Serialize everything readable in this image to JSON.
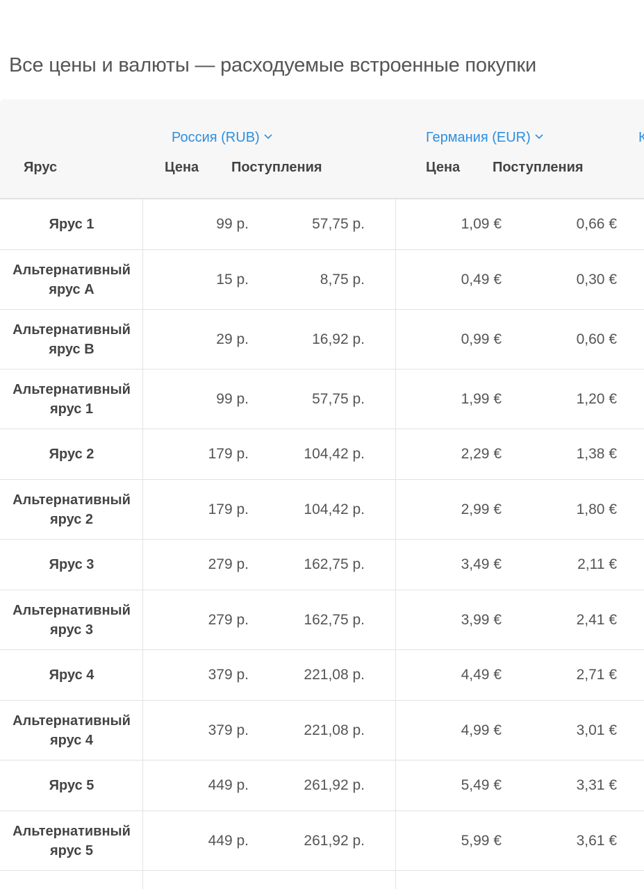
{
  "title": "Все цены и валюты — расходуемые встроенные покупки",
  "header": {
    "tier_label": "Ярус",
    "countries": [
      {
        "label": "Россия (RUB)"
      },
      {
        "label": "Германия (EUR)"
      },
      {
        "label": "К"
      }
    ],
    "price_label": "Цена",
    "proceeds_label": "Поступления"
  },
  "rows": [
    {
      "tier": "Ярус 1",
      "rub_price": "99 р.",
      "rub_proceeds": "57,75 р.",
      "eur_price": "1,09 €",
      "eur_proceeds": "0,66 €"
    },
    {
      "tier": "Альтернативный ярус A",
      "rub_price": "15 р.",
      "rub_proceeds": "8,75 р.",
      "eur_price": "0,49 €",
      "eur_proceeds": "0,30 €"
    },
    {
      "tier": "Альтернативный ярус B",
      "rub_price": "29 р.",
      "rub_proceeds": "16,92 р.",
      "eur_price": "0,99 €",
      "eur_proceeds": "0,60 €"
    },
    {
      "tier": "Альтернативный ярус 1",
      "rub_price": "99 р.",
      "rub_proceeds": "57,75 р.",
      "eur_price": "1,99 €",
      "eur_proceeds": "1,20 €"
    },
    {
      "tier": "Ярус 2",
      "rub_price": "179 р.",
      "rub_proceeds": "104,42 р.",
      "eur_price": "2,29 €",
      "eur_proceeds": "1,38 €"
    },
    {
      "tier": "Альтернативный ярус 2",
      "rub_price": "179 р.",
      "rub_proceeds": "104,42 р.",
      "eur_price": "2,99 €",
      "eur_proceeds": "1,80 €"
    },
    {
      "tier": "Ярус 3",
      "rub_price": "279 р.",
      "rub_proceeds": "162,75 р.",
      "eur_price": "3,49 €",
      "eur_proceeds": "2,11 €"
    },
    {
      "tier": "Альтернативный ярус 3",
      "rub_price": "279 р.",
      "rub_proceeds": "162,75 р.",
      "eur_price": "3,99 €",
      "eur_proceeds": "2,41 €"
    },
    {
      "tier": "Ярус 4",
      "rub_price": "379 р.",
      "rub_proceeds": "221,08 р.",
      "eur_price": "4,49 €",
      "eur_proceeds": "2,71 €"
    },
    {
      "tier": "Альтернативный ярус 4",
      "rub_price": "379 р.",
      "rub_proceeds": "221,08 р.",
      "eur_price": "4,99 €",
      "eur_proceeds": "3,01 €"
    },
    {
      "tier": "Ярус 5",
      "rub_price": "449 р.",
      "rub_proceeds": "261,92 р.",
      "eur_price": "5,49 €",
      "eur_proceeds": "3,31 €"
    },
    {
      "tier": "Альтернативный ярус 5",
      "rub_price": "449 р.",
      "rub_proceeds": "261,92 р.",
      "eur_price": "5,99 €",
      "eur_proceeds": "3,61 €"
    }
  ]
}
